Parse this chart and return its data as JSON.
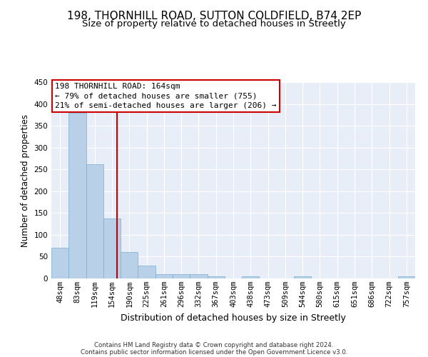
{
  "title": "198, THORNHILL ROAD, SUTTON COLDFIELD, B74 2EP",
  "subtitle": "Size of property relative to detached houses in Streetly",
  "xlabel": "Distribution of detached houses by size in Streetly",
  "ylabel": "Number of detached properties",
  "footer_line1": "Contains HM Land Registry data © Crown copyright and database right 2024.",
  "footer_line2": "Contains public sector information licensed under the Open Government Licence v3.0.",
  "categories": [
    "48sqm",
    "83sqm",
    "119sqm",
    "154sqm",
    "190sqm",
    "225sqm",
    "261sqm",
    "296sqm",
    "332sqm",
    "367sqm",
    "403sqm",
    "438sqm",
    "473sqm",
    "509sqm",
    "544sqm",
    "580sqm",
    "615sqm",
    "651sqm",
    "686sqm",
    "722sqm",
    "757sqm"
  ],
  "values": [
    70,
    380,
    262,
    137,
    60,
    30,
    10,
    10,
    10,
    5,
    0,
    5,
    0,
    0,
    5,
    0,
    0,
    0,
    0,
    0,
    5
  ],
  "bar_color": "#b8d0e8",
  "bar_edge_color": "#7aaecc",
  "background_color": "#ffffff",
  "plot_bg_color": "#e8eef8",
  "grid_color": "#ffffff",
  "ylim": [
    0,
    450
  ],
  "yticks": [
    0,
    50,
    100,
    150,
    200,
    250,
    300,
    350,
    400,
    450
  ],
  "vline_x": 3.3,
  "vline_color": "#cc0000",
  "annotation_text_line1": "198 THORNHILL ROAD: 164sqm",
  "annotation_text_line2": "← 79% of detached houses are smaller (755)",
  "annotation_text_line3": "21% of semi-detached houses are larger (206) →",
  "annotation_box_color": "#cc0000",
  "title_fontsize": 11,
  "subtitle_fontsize": 9.5,
  "xlabel_fontsize": 9,
  "ylabel_fontsize": 8.5,
  "tick_fontsize": 7.5,
  "annotation_fontsize": 8
}
